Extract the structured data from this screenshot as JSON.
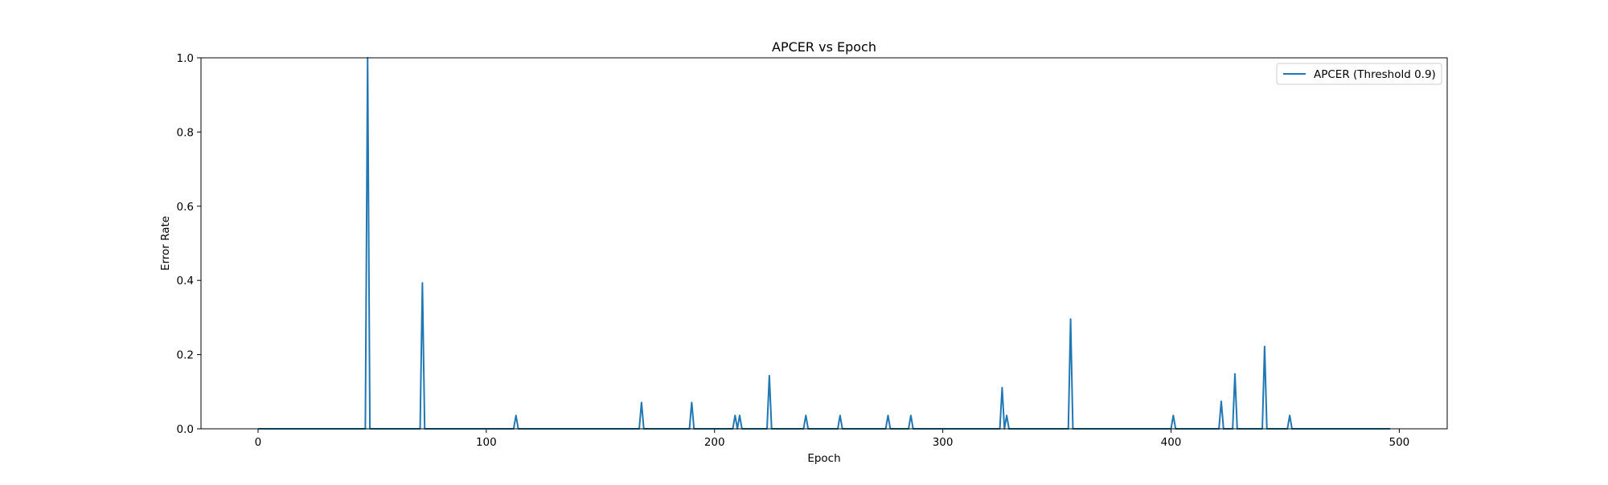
{
  "chart_data": {
    "type": "line",
    "title": "APCER vs Epoch",
    "xlabel": "Epoch",
    "ylabel": "Error Rate",
    "xlim": [
      -25,
      521
    ],
    "ylim": [
      0,
      1.0
    ],
    "xticks": [
      0,
      100,
      200,
      300,
      400,
      500
    ],
    "xtick_labels": [
      "0",
      "100",
      "200",
      "300",
      "400",
      "500"
    ],
    "yticks": [
      0.0,
      0.2,
      0.4,
      0.6,
      0.8,
      1.0
    ],
    "ytick_labels": [
      "0.0",
      "0.2",
      "0.4",
      "0.6",
      "0.8",
      "1.0"
    ],
    "grid": false,
    "legend_position": "top-right",
    "series": [
      {
        "name": "APCER (Threshold 0.9)",
        "color": "#1f77b4",
        "x_start": 0,
        "x_end": 496,
        "nonzero_points": [
          {
            "x": 48,
            "y": 1.0
          },
          {
            "x": 72,
            "y": 0.393
          },
          {
            "x": 113,
            "y": 0.036
          },
          {
            "x": 168,
            "y": 0.071
          },
          {
            "x": 190,
            "y": 0.071
          },
          {
            "x": 209,
            "y": 0.036
          },
          {
            "x": 211,
            "y": 0.036
          },
          {
            "x": 224,
            "y": 0.143
          },
          {
            "x": 240,
            "y": 0.036
          },
          {
            "x": 255,
            "y": 0.036
          },
          {
            "x": 276,
            "y": 0.036
          },
          {
            "x": 286,
            "y": 0.036
          },
          {
            "x": 326,
            "y": 0.111
          },
          {
            "x": 328,
            "y": 0.036
          },
          {
            "x": 356,
            "y": 0.296
          },
          {
            "x": 401,
            "y": 0.036
          },
          {
            "x": 422,
            "y": 0.074
          },
          {
            "x": 428,
            "y": 0.148
          },
          {
            "x": 441,
            "y": 0.222
          },
          {
            "x": 452,
            "y": 0.036
          }
        ]
      }
    ]
  }
}
